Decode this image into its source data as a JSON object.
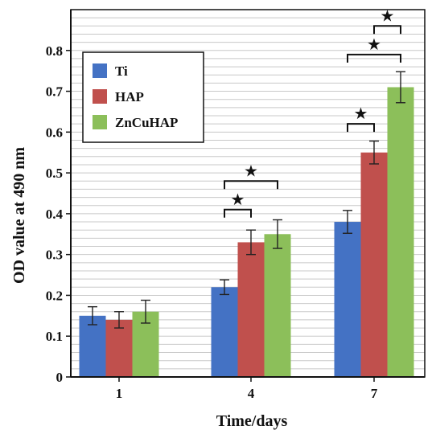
{
  "chart_data": {
    "type": "bar",
    "xlabel": "Time/days",
    "ylabel": "OD value at 490 nm",
    "categories": [
      "1",
      "4",
      "7"
    ],
    "ylim": [
      0,
      0.9
    ],
    "yticks": [
      "0",
      "0.1",
      "0.2",
      "0.3",
      "0.4",
      "0.5",
      "0.6",
      "0.7",
      "0.8"
    ],
    "grid": true,
    "legend_position": "top-left",
    "series": [
      {
        "name": "Ti",
        "color": "#4472C4",
        "values": [
          0.15,
          0.22,
          0.38
        ],
        "errors": [
          0.022,
          0.018,
          0.028
        ]
      },
      {
        "name": "HAP",
        "color": "#C0504D",
        "values": [
          0.14,
          0.33,
          0.55
        ],
        "errors": [
          0.02,
          0.03,
          0.028
        ]
      },
      {
        "name": "ZnCuHAP",
        "color": "#8CBF5A",
        "values": [
          0.16,
          0.35,
          0.71
        ],
        "errors": [
          0.028,
          0.035,
          0.038
        ]
      }
    ],
    "significance": [
      {
        "category": 1,
        "from": 0,
        "to": 1,
        "y": 0.41,
        "symbol": "★"
      },
      {
        "category": 1,
        "from": 0,
        "to": 2,
        "y": 0.48,
        "symbol": "★"
      },
      {
        "category": 2,
        "from": 0,
        "to": 1,
        "y": 0.62,
        "symbol": "★"
      },
      {
        "category": 2,
        "from": 0,
        "to": 2,
        "y": 0.79,
        "symbol": "★"
      },
      {
        "category": 2,
        "from": 1,
        "to": 2,
        "y": 0.86,
        "symbol": "★"
      }
    ]
  }
}
